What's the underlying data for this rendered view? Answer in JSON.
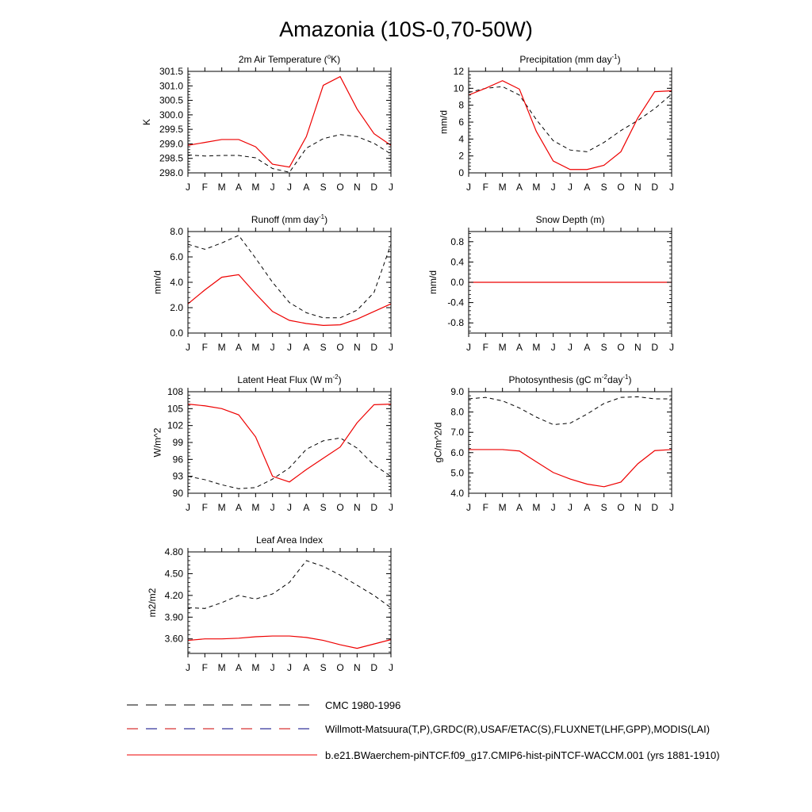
{
  "page": {
    "title": "Amazonia (10S-0,70-50W)"
  },
  "legend": [
    {
      "label": "CMC 1980-1996",
      "style": "dashed",
      "colors": [
        "#000000"
      ]
    },
    {
      "label": "Willmott-Matsuura(T,P),GRDC(R),USAF/ETAC(S),FLUXNET(LHF,GPP),MODIS(LAI)",
      "style": "dashed",
      "colors": [
        "#cc0000",
        "#000080"
      ]
    },
    {
      "label": "b.e21.BWaerchem-piNTCF.f09_g17.CMIP6-hist-piNTCF-WACCM.001 (yrs 1881-1910)",
      "style": "solid",
      "colors": [
        "#ee0000"
      ]
    }
  ],
  "colors": {
    "model": "#ee0000",
    "obs": "#000000"
  },
  "chart_data": [
    {
      "type": "line",
      "title_main": "2m Air Temperature (",
      "title_sup": "o",
      "title_rest": "K)",
      "ylabel": "K",
      "categories": [
        "J",
        "F",
        "M",
        "A",
        "M",
        "J",
        "J",
        "A",
        "S",
        "O",
        "N",
        "D",
        "J"
      ],
      "ylim": [
        298.0,
        301.5
      ],
      "yticks": [
        298.0,
        298.5,
        299.0,
        299.5,
        300.0,
        300.5,
        301.0,
        301.5
      ],
      "ytick_labels": [
        "298.0",
        "298.5",
        "299.0",
        "299.5",
        "300.0",
        "300.5",
        "301.0",
        "301.5"
      ],
      "series": [
        {
          "style": "dashed",
          "values": [
            298.62,
            298.58,
            298.6,
            298.6,
            298.52,
            298.15,
            298.02,
            298.85,
            299.18,
            299.32,
            299.25,
            299.02,
            298.65
          ]
        },
        {
          "style": "solid",
          "values": [
            298.95,
            299.05,
            299.15,
            299.15,
            298.9,
            298.3,
            298.2,
            299.25,
            301.02,
            301.32,
            300.2,
            299.35,
            298.95
          ]
        }
      ]
    },
    {
      "type": "line",
      "title_main": "Precipitation (mm day",
      "title_sup": "-1",
      "title_rest": ")",
      "ylabel": "mm/d",
      "categories": [
        "J",
        "F",
        "M",
        "A",
        "M",
        "J",
        "J",
        "A",
        "S",
        "O",
        "N",
        "D",
        "J"
      ],
      "ylim": [
        0,
        12
      ],
      "yticks": [
        0,
        2,
        4,
        6,
        8,
        10,
        12
      ],
      "ytick_labels": [
        "0",
        "2",
        "4",
        "6",
        "8",
        "10",
        "12"
      ],
      "series": [
        {
          "style": "dashed",
          "values": [
            9.5,
            10.0,
            10.2,
            9.2,
            6.3,
            3.8,
            2.7,
            2.5,
            3.6,
            5.0,
            6.2,
            7.6,
            9.3
          ]
        },
        {
          "style": "solid",
          "values": [
            9.2,
            10.0,
            10.9,
            9.9,
            4.9,
            1.4,
            0.4,
            0.4,
            0.9,
            2.5,
            6.5,
            9.6,
            9.7
          ]
        }
      ]
    },
    {
      "type": "line",
      "title_main": "Runoff (mm day",
      "title_sup": "-1",
      "title_rest": ")",
      "ylabel": "mm/d",
      "categories": [
        "J",
        "F",
        "M",
        "A",
        "M",
        "J",
        "J",
        "A",
        "S",
        "O",
        "N",
        "D",
        "J"
      ],
      "ylim": [
        0,
        8
      ],
      "yticks": [
        0,
        2,
        4,
        6,
        8
      ],
      "ytick_labels": [
        "0.0",
        "2.0",
        "4.0",
        "6.0",
        "8.0"
      ],
      "series": [
        {
          "style": "dashed",
          "values": [
            7.0,
            6.6,
            7.1,
            7.7,
            5.9,
            4.0,
            2.4,
            1.6,
            1.2,
            1.2,
            1.8,
            3.2,
            7.0
          ]
        },
        {
          "style": "solid",
          "values": [
            2.3,
            3.4,
            4.4,
            4.6,
            3.1,
            1.7,
            1.0,
            0.75,
            0.6,
            0.65,
            1.1,
            1.7,
            2.3
          ]
        }
      ]
    },
    {
      "type": "line",
      "title_main": "Snow Depth (m)",
      "title_sup": "",
      "title_rest": "",
      "ylabel": "mm/d",
      "categories": [
        "J",
        "F",
        "M",
        "A",
        "M",
        "J",
        "J",
        "A",
        "S",
        "O",
        "N",
        "D",
        "J"
      ],
      "ylim": [
        -1.0,
        1.0
      ],
      "yticks": [
        -0.8,
        -0.4,
        0.0,
        0.4,
        0.8
      ],
      "ytick_labels": [
        "-0.8",
        "-0.4",
        "0.0",
        "0.4",
        "0.8"
      ],
      "series": [
        {
          "style": "dashed-bicolor",
          "values": [
            0,
            0,
            0,
            0,
            0,
            0,
            0,
            0,
            0,
            0,
            0,
            0,
            0
          ]
        },
        {
          "style": "solid",
          "values": [
            0,
            0,
            0,
            0,
            0,
            0,
            0,
            0,
            0,
            0,
            0,
            0,
            0
          ]
        }
      ]
    },
    {
      "type": "line",
      "title_main": "Latent Heat Flux (W m",
      "title_sup": "-2",
      "title_rest": ")",
      "ylabel": "W/m^2",
      "categories": [
        "J",
        "F",
        "M",
        "A",
        "M",
        "J",
        "J",
        "A",
        "S",
        "O",
        "N",
        "D",
        "J"
      ],
      "ylim": [
        90,
        108
      ],
      "yticks": [
        90,
        93,
        96,
        99,
        102,
        105,
        108
      ],
      "ytick_labels": [
        "90",
        "93",
        "96",
        "99",
        "102",
        "105",
        "108"
      ],
      "series": [
        {
          "style": "dashed",
          "values": [
            93.0,
            92.4,
            91.5,
            90.8,
            91.0,
            92.5,
            94.5,
            97.8,
            99.3,
            99.8,
            98.0,
            95.0,
            93.0
          ]
        },
        {
          "style": "solid",
          "values": [
            105.8,
            105.5,
            105.0,
            103.9,
            100.0,
            93.0,
            92.0,
            94.2,
            96.2,
            98.2,
            102.5,
            105.7,
            105.8
          ]
        }
      ]
    },
    {
      "type": "line",
      "title_main": "Photosynthesis (gC m",
      "title_sup": "-2",
      "title_rest": "day",
      "title_sup2": "-1",
      "title_rest2": ")",
      "ylabel": "gC/m^2/d",
      "categories": [
        "J",
        "F",
        "M",
        "A",
        "M",
        "J",
        "J",
        "A",
        "S",
        "O",
        "N",
        "D",
        "J"
      ],
      "ylim": [
        4.0,
        9.0
      ],
      "yticks": [
        4.0,
        5.0,
        6.0,
        7.0,
        8.0,
        9.0
      ],
      "ytick_labels": [
        "4.0",
        "5.0",
        "6.0",
        "7.0",
        "8.0",
        "9.0"
      ],
      "series": [
        {
          "style": "dashed",
          "values": [
            8.65,
            8.72,
            8.55,
            8.2,
            7.75,
            7.38,
            7.45,
            7.9,
            8.42,
            8.72,
            8.75,
            8.65,
            8.65
          ]
        },
        {
          "style": "solid",
          "values": [
            6.15,
            6.15,
            6.15,
            6.08,
            5.55,
            5.02,
            4.7,
            4.45,
            4.32,
            4.55,
            5.45,
            6.1,
            6.15
          ]
        }
      ]
    },
    {
      "type": "line",
      "title_main": "Leaf Area Index",
      "title_sup": "",
      "title_rest": "",
      "ylabel": "m2/m2",
      "categories": [
        "J",
        "F",
        "M",
        "A",
        "M",
        "J",
        "J",
        "A",
        "S",
        "O",
        "N",
        "D",
        "J"
      ],
      "ylim": [
        3.4,
        4.8
      ],
      "yticks": [
        3.6,
        3.9,
        4.2,
        4.5,
        4.8
      ],
      "ytick_labels": [
        "3.60",
        "3.90",
        "4.20",
        "4.50",
        "4.80"
      ],
      "series": [
        {
          "style": "dashed",
          "values": [
            4.03,
            4.02,
            4.1,
            4.2,
            4.15,
            4.22,
            4.38,
            4.68,
            4.6,
            4.48,
            4.34,
            4.2,
            4.03
          ]
        },
        {
          "style": "solid",
          "values": [
            3.58,
            3.6,
            3.6,
            3.61,
            3.63,
            3.64,
            3.64,
            3.62,
            3.58,
            3.52,
            3.47,
            3.53,
            3.59
          ]
        }
      ]
    }
  ]
}
